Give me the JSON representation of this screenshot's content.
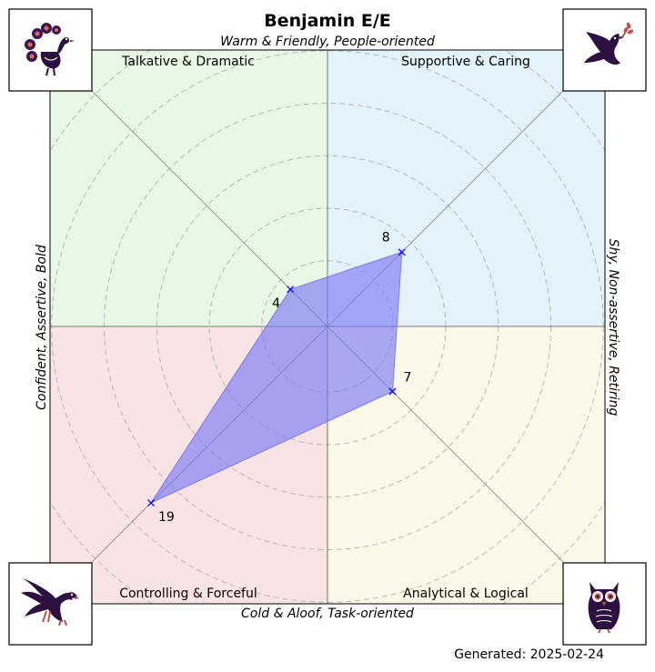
{
  "chart_data": {
    "type": "radar",
    "title": "Benjamin E/E",
    "axis_labels": {
      "top": "Warm & Friendly, People-oriented",
      "bottom": "Cold & Aloof, Task-oriented",
      "left": "Confident, Assertive, Bold",
      "right": "Shy, Non-assertive, Retiring"
    },
    "quadrants": [
      {
        "key": "tl",
        "label": "Talkative & Dramatic",
        "color": "#e8f8e4",
        "icon": "peacock-icon"
      },
      {
        "key": "tr",
        "label": "Supportive & Caring",
        "color": "#e4f2fc",
        "icon": "dove-icon"
      },
      {
        "key": "bl",
        "label": "Controlling & Forceful",
        "color": "#fae3e4",
        "icon": "eagle-icon"
      },
      {
        "key": "br",
        "label": "Analytical & Logical",
        "color": "#fbf9e7",
        "icon": "owl-icon"
      }
    ],
    "points": [
      {
        "quadrant": "tl",
        "value": 4,
        "label": "4"
      },
      {
        "quadrant": "tr",
        "value": 8,
        "label": "8"
      },
      {
        "quadrant": "br",
        "value": 7,
        "label": "7"
      },
      {
        "quadrant": "bl",
        "value": 19,
        "label": "19"
      }
    ],
    "r_max": 26,
    "grid_circles": [
      5,
      9,
      13,
      17,
      21,
      25
    ],
    "polygon_color": "#7b7bf5",
    "marker_color": "#0000ff",
    "grid": true
  },
  "footer": {
    "generated": "Generated: 2025-02-24"
  }
}
